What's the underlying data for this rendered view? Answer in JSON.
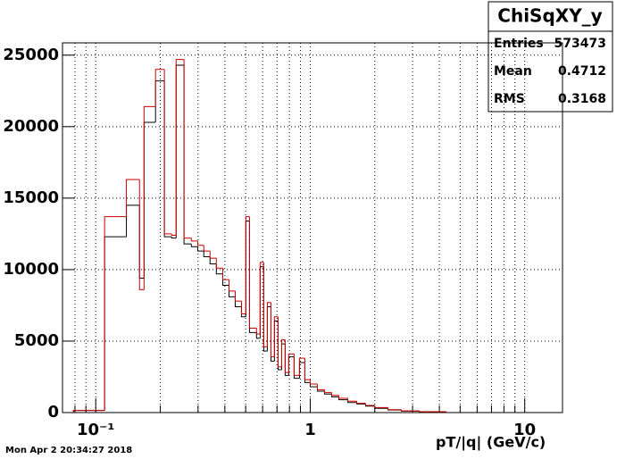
{
  "chart_data": {
    "type": "histogram",
    "stats_title": "ChiSqXY_y",
    "stats": [
      {
        "label": "Entries",
        "value": "573473"
      },
      {
        "label": "Mean",
        "value": "0.4712"
      },
      {
        "label": "RMS",
        "value": "0.3168"
      }
    ],
    "x_label": "pT/|q| (GeV/c)",
    "timestamp": "Mon Apr  2 20:34:27 2018",
    "log_x": true,
    "grid": true,
    "xlim": [
      0.07,
      15
    ],
    "ylim": [
      0,
      25860
    ],
    "xticks": [
      {
        "value": 0.1,
        "label": "10⁻¹"
      },
      1,
      10
    ],
    "xminor": [
      0.08,
      0.09,
      0.2,
      0.3,
      0.4,
      0.5,
      0.6,
      0.7,
      0.8,
      0.9,
      2,
      3,
      4,
      5,
      6,
      7,
      8,
      9
    ],
    "yticks": [
      0,
      5000,
      10000,
      15000,
      20000,
      25000
    ],
    "bins": [
      0.0787,
      0.11,
      0.139,
      0.16,
      0.168,
      0.19,
      0.209,
      0.226,
      0.237,
      0.258,
      0.279,
      0.299,
      0.319,
      0.341,
      0.365,
      0.391,
      0.418,
      0.447,
      0.478,
      0.501,
      0.521,
      0.562,
      0.584,
      0.607,
      0.631,
      0.656,
      0.681,
      0.708,
      0.736,
      0.764,
      0.794,
      0.841,
      0.891,
      0.944,
      1.0,
      1.08,
      1.166,
      1.259,
      1.359,
      1.496,
      1.648,
      1.812,
      1.995,
      2.305,
      2.661,
      3.224,
      4.3
    ],
    "series": [
      {
        "color": "#000000",
        "values": [
          150,
          12300,
          14500,
          9400,
          20300,
          23200,
          12300,
          12200,
          24300,
          11800,
          11600,
          11300,
          10900,
          10400,
          9700,
          8900,
          8100,
          7400,
          6700,
          13400,
          5600,
          5200,
          10200,
          4300,
          7400,
          3600,
          6400,
          3000,
          4800,
          2600,
          3900,
          2400,
          3500,
          2100,
          1800,
          1500,
          1300,
          1100,
          900,
          700,
          600,
          450,
          300,
          180,
          100,
          50
        ]
      },
      {
        "color": "#cc0000",
        "values": [
          150,
          13700,
          16300,
          8600,
          21400,
          24000,
          12500,
          12400,
          24700,
          12200,
          12000,
          11700,
          11300,
          10800,
          10100,
          9300,
          8500,
          7800,
          6900,
          13700,
          5900,
          5500,
          10500,
          4600,
          7700,
          3900,
          6700,
          3200,
          5100,
          2800,
          4100,
          2600,
          3800,
          2300,
          2000,
          1600,
          1400,
          1200,
          1000,
          800,
          650,
          500,
          350,
          200,
          120,
          60
        ]
      }
    ]
  }
}
